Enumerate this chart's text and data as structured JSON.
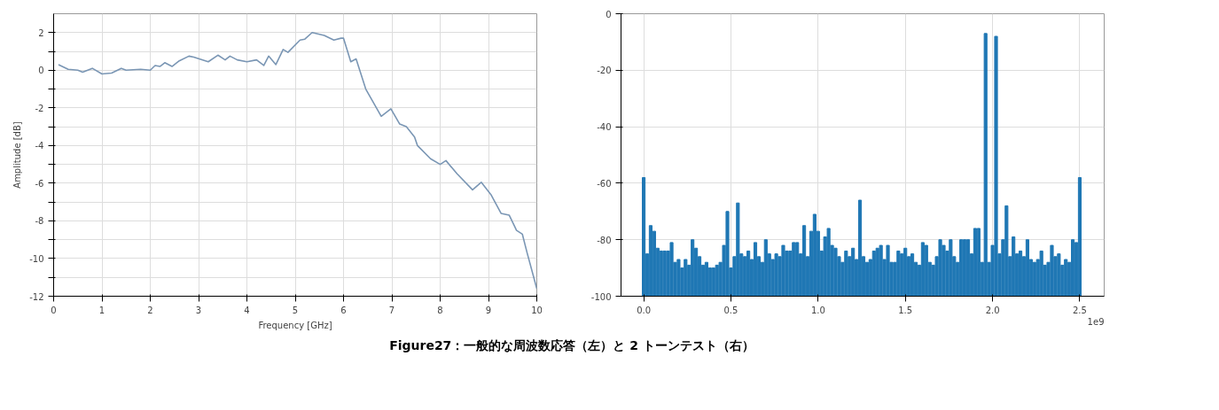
{
  "chart_data": [
    {
      "type": "line",
      "xlabel": "Frequency [GHz]",
      "ylabel": "Amplitude [dB]",
      "xlim": [
        0,
        10
      ],
      "ylim": [
        -12,
        3
      ],
      "xticks": [
        0,
        1,
        2,
        3,
        4,
        5,
        6,
        7,
        8,
        9,
        10
      ],
      "yticks": [
        -12,
        {
          "value": -11,
          "label": null
        },
        -10,
        {
          "value": -9,
          "label": null
        },
        -8,
        {
          "value": -7,
          "label": null
        },
        -6,
        {
          "value": -5,
          "label": null
        },
        -4,
        {
          "value": -3,
          "label": null
        },
        -2,
        {
          "value": -1,
          "label": null
        },
        0,
        {
          "value": 1,
          "label": null
        },
        2
      ],
      "grid": true,
      "series": [
        {
          "color": "#7a96b4",
          "x": [
            0.1,
            0.3,
            0.5,
            0.6,
            0.8,
            1.0,
            1.2,
            1.4,
            1.5,
            1.8,
            2.0,
            2.1,
            2.2,
            2.3,
            2.45,
            2.6,
            2.8,
            2.9,
            3.2,
            3.4,
            3.55,
            3.65,
            3.8,
            4.0,
            4.2,
            4.35,
            4.45,
            4.6,
            4.75,
            4.85,
            5.1,
            5.2,
            5.35,
            5.6,
            5.8,
            5.95,
            6.0,
            6.15,
            6.26,
            6.46,
            6.78,
            6.98,
            7.16,
            7.3,
            7.47,
            7.53,
            7.8,
            8.0,
            8.12,
            8.35,
            8.67,
            8.85,
            9.05,
            9.26,
            9.43,
            9.58,
            9.7,
            9.8,
            10.0
          ],
          "values": [
            0.3,
            0.05,
            0.0,
            -0.1,
            0.1,
            -0.2,
            -0.15,
            0.1,
            0.0,
            0.05,
            0.0,
            0.25,
            0.2,
            0.4,
            0.2,
            0.5,
            0.75,
            0.7,
            0.45,
            0.8,
            0.55,
            0.75,
            0.55,
            0.45,
            0.55,
            0.25,
            0.75,
            0.3,
            1.1,
            0.95,
            1.6,
            1.65,
            2.0,
            1.85,
            1.6,
            1.7,
            1.7,
            0.45,
            0.6,
            -1.0,
            -2.45,
            -2.05,
            -2.85,
            -3.0,
            -3.55,
            -4.0,
            -4.7,
            -5.0,
            -4.8,
            -5.5,
            -6.35,
            -5.95,
            -6.6,
            -7.6,
            -7.7,
            -8.5,
            -8.7,
            -9.7,
            -11.6
          ]
        }
      ],
      "annotations": [
        "Figure27：一般的な周波数応答（左）と 2 トーンテスト（右）"
      ]
    },
    {
      "type": "bar",
      "xlim": [
        -0.13,
        2.64
      ],
      "ylim": [
        -100,
        0
      ],
      "xticks": [
        {
          "value": 0,
          "label": "0.0"
        },
        0.5,
        {
          "value": 1,
          "label": "1.0"
        },
        1.5,
        {
          "value": 2,
          "label": "2.0"
        },
        2.5
      ],
      "yticks": [
        -100,
        -80,
        -60,
        -40,
        -20,
        0
      ],
      "grid": true,
      "annotations": [
        "1e9"
      ],
      "series": [
        {
          "color": "#1f77b4",
          "x": [
            0.0,
            0.02,
            0.04,
            0.06,
            0.08,
            0.1,
            0.12,
            0.14,
            0.16,
            0.18,
            0.2,
            0.22,
            0.24,
            0.26,
            0.28,
            0.3,
            0.32,
            0.34,
            0.36,
            0.38,
            0.4,
            0.42,
            0.44,
            0.46,
            0.48,
            0.5,
            0.52,
            0.54,
            0.56,
            0.58,
            0.6,
            0.62,
            0.64,
            0.66,
            0.68,
            0.7,
            0.72,
            0.74,
            0.76,
            0.78,
            0.8,
            0.82,
            0.84,
            0.86,
            0.88,
            0.9,
            0.92,
            0.94,
            0.96,
            0.98,
            1.0,
            1.02,
            1.04,
            1.06,
            1.08,
            1.1,
            1.12,
            1.14,
            1.16,
            1.18,
            1.2,
            1.22,
            1.24,
            1.26,
            1.28,
            1.3,
            1.32,
            1.34,
            1.36,
            1.38,
            1.4,
            1.42,
            1.44,
            1.46,
            1.48,
            1.5,
            1.52,
            1.54,
            1.56,
            1.58,
            1.6,
            1.62,
            1.64,
            1.66,
            1.68,
            1.7,
            1.72,
            1.74,
            1.76,
            1.78,
            1.8,
            1.82,
            1.84,
            1.86,
            1.88,
            1.9,
            1.92,
            1.94,
            1.96,
            1.98,
            2.0,
            2.02,
            2.04,
            2.06,
            2.08,
            2.1,
            2.12,
            2.14,
            2.16,
            2.18,
            2.2,
            2.22,
            2.24,
            2.26,
            2.28,
            2.3,
            2.32,
            2.34,
            2.36,
            2.38,
            2.4,
            2.42,
            2.44,
            2.46,
            2.48,
            2.5
          ],
          "base": [
            -100,
            -100,
            -100,
            -100,
            -100,
            -100,
            -100,
            -100,
            -100,
            -100,
            -100,
            -100,
            -100,
            -100,
            -100,
            -100,
            -100,
            -100,
            -100,
            -100,
            -100,
            -100,
            -100,
            -100,
            -100,
            -100,
            -100,
            -100,
            -100,
            -100,
            -100,
            -100,
            -100,
            -100,
            -100,
            -100,
            -100,
            -100,
            -100,
            -100,
            -100,
            -100,
            -100,
            -100,
            -100,
            -100,
            -100,
            -100,
            -100,
            -100,
            -100,
            -100,
            -100,
            -100,
            -100,
            -100,
            -100,
            -100,
            -100,
            -100,
            -100,
            -100,
            -100,
            -100,
            -100,
            -100,
            -100,
            -100,
            -100,
            -100,
            -100,
            -100,
            -100,
            -100,
            -100,
            -100,
            -100,
            -100,
            -100,
            -100,
            -100,
            -100,
            -100,
            -100,
            -100,
            -100,
            -100,
            -100,
            -100,
            -100,
            -100,
            -100,
            -100,
            -100,
            -100,
            -100,
            -100,
            -100,
            -100,
            -100,
            -100,
            -100,
            -100,
            -100,
            -100,
            -100,
            -100,
            -100,
            -100,
            -100,
            -100,
            -100,
            -100,
            -100,
            -100,
            -100,
            -100,
            -100,
            -100,
            -100,
            -100,
            -100,
            -100,
            -100,
            -100,
            -100
          ],
          "values": [
            42,
            15,
            25,
            23,
            17,
            16,
            16,
            16,
            19,
            12,
            13,
            10,
            13,
            11,
            20,
            17,
            14,
            11,
            12,
            10,
            10,
            11,
            12,
            18,
            30,
            10,
            14,
            33,
            15,
            14,
            16,
            13,
            19,
            14,
            12,
            20,
            15,
            13,
            15,
            14,
            18,
            16,
            16,
            19,
            19,
            15,
            25,
            14,
            23,
            29,
            23,
            16,
            21,
            24,
            18,
            17,
            14,
            12,
            16,
            14,
            17,
            13,
            34,
            14,
            12,
            13,
            16,
            17,
            18,
            13,
            18,
            12,
            12,
            16,
            15,
            17,
            14,
            15,
            12,
            11,
            19,
            18,
            12,
            11,
            14,
            20,
            18,
            16,
            20,
            14,
            12,
            20,
            20,
            20,
            15,
            24,
            24,
            12,
            93,
            12,
            18,
            92,
            15,
            20,
            32,
            14,
            21,
            15,
            16,
            14,
            20,
            13,
            12,
            13,
            16,
            11,
            12,
            18,
            14,
            15,
            11,
            13,
            12,
            20,
            19,
            42
          ]
        }
      ]
    }
  ]
}
